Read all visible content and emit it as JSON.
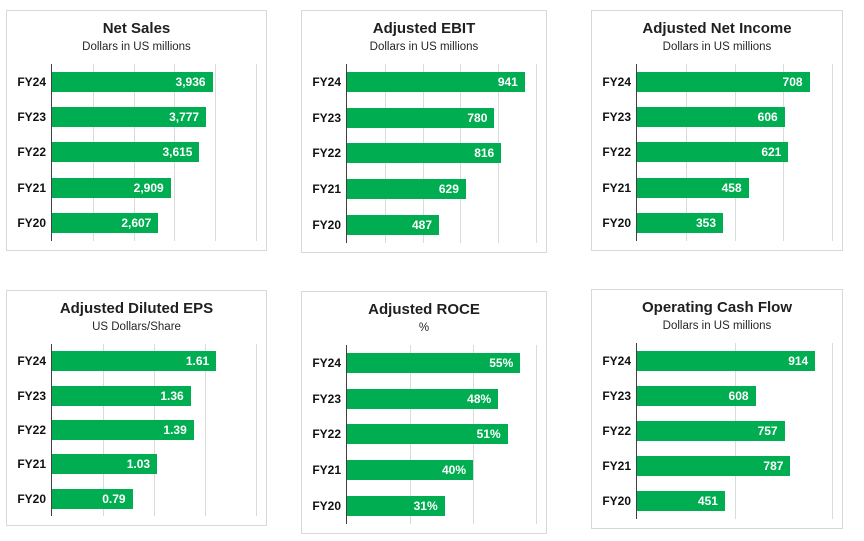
{
  "colors": {
    "bar_green": "#00AD50",
    "axis": "#404040",
    "gridline": "#dadada",
    "panel_border": "#d8d8d8",
    "title_text": "#1f1f1f",
    "value_label_text": "#ffffff",
    "category_label_text": "#111111",
    "background": "#ffffff"
  },
  "chart_data": [
    {
      "type": "bar",
      "orientation": "horizontal",
      "title": "Net Sales",
      "subtitle": "Dollars in US millions",
      "categories": [
        "FY24",
        "FY23",
        "FY22",
        "FY21",
        "FY20"
      ],
      "values": [
        3936,
        3777,
        3615,
        2909,
        2607
      ],
      "value_labels": [
        "3,936",
        "3,777",
        "3,615",
        "2,909",
        "2,607"
      ],
      "xlim": [
        0,
        5000
      ],
      "grid_step": 1000,
      "grid": true,
      "legend": "none"
    },
    {
      "type": "bar",
      "orientation": "horizontal",
      "title": "Adjusted EBIT",
      "subtitle": "Dollars in US millions",
      "categories": [
        "FY24",
        "FY23",
        "FY22",
        "FY21",
        "FY20"
      ],
      "values": [
        941,
        780,
        816,
        629,
        487
      ],
      "value_labels": [
        "941",
        "780",
        "816",
        "629",
        "487"
      ],
      "xlim": [
        0,
        1000
      ],
      "grid_step": 200,
      "grid": true,
      "legend": "none"
    },
    {
      "type": "bar",
      "orientation": "horizontal",
      "title": "Adjusted Net Income",
      "subtitle": "Dollars in US millions",
      "categories": [
        "FY24",
        "FY23",
        "FY22",
        "FY21",
        "FY20"
      ],
      "values": [
        708,
        606,
        621,
        458,
        353
      ],
      "value_labels": [
        "708",
        "606",
        "621",
        "458",
        "353"
      ],
      "xlim": [
        0,
        800
      ],
      "grid_step": 200,
      "grid": true,
      "legend": "none"
    },
    {
      "type": "bar",
      "orientation": "horizontal",
      "title": "Adjusted Diluted EPS",
      "subtitle": "US Dollars/Share",
      "categories": [
        "FY24",
        "FY23",
        "FY22",
        "FY21",
        "FY20"
      ],
      "values": [
        1.61,
        1.36,
        1.39,
        1.03,
        0.79
      ],
      "value_labels": [
        "1.61",
        "1.36",
        "1.39",
        "1.03",
        "0.79"
      ],
      "xlim": [
        0,
        2
      ],
      "grid_step": 0.5,
      "grid": true,
      "legend": "none"
    },
    {
      "type": "bar",
      "orientation": "horizontal",
      "title": "Adjusted ROCE",
      "subtitle": "%",
      "categories": [
        "FY24",
        "FY23",
        "FY22",
        "FY21",
        "FY20"
      ],
      "values": [
        55,
        48,
        51,
        40,
        31
      ],
      "value_labels": [
        "55%",
        "48%",
        "51%",
        "40%",
        "31%"
      ],
      "xlim": [
        0,
        60
      ],
      "grid_step": 20,
      "grid": true,
      "legend": "none"
    },
    {
      "type": "bar",
      "orientation": "horizontal",
      "title": "Operating Cash Flow",
      "subtitle": "Dollars in US millions",
      "categories": [
        "FY24",
        "FY23",
        "FY22",
        "FY21",
        "FY20"
      ],
      "values": [
        914,
        608,
        757,
        787,
        451
      ],
      "value_labels": [
        "914",
        "608",
        "757",
        "787",
        "451"
      ],
      "xlim": [
        0,
        1000
      ],
      "grid_step": 500,
      "grid": true,
      "legend": "none"
    }
  ]
}
